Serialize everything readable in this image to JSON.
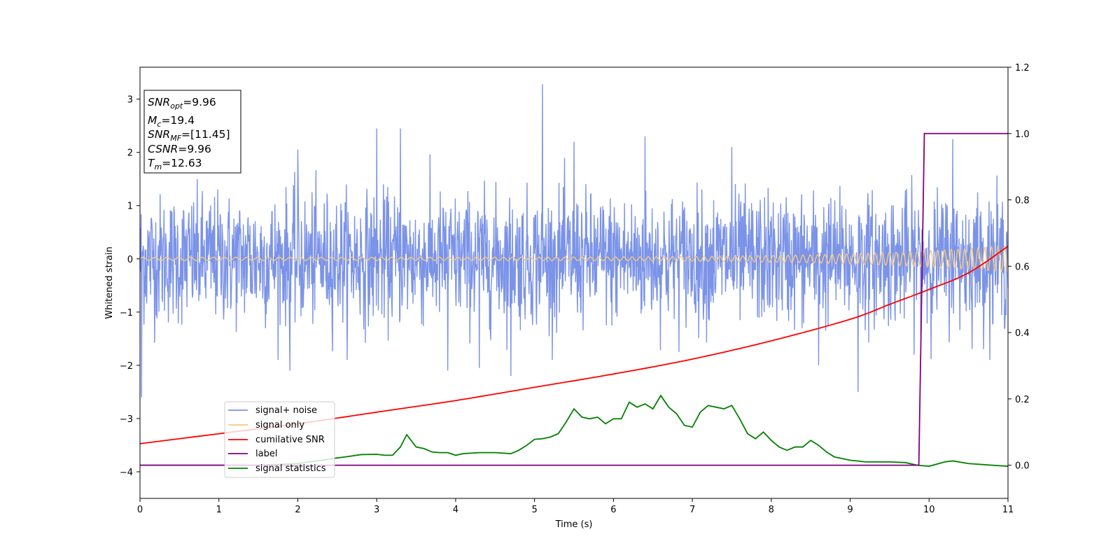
{
  "chart_data": {
    "type": "line",
    "xlabel": "Time (s)",
    "ylabel": "Whitened strain",
    "ylabel_right": "",
    "xlim": [
      0,
      11
    ],
    "ylim": [
      -4.5,
      3.6
    ],
    "ylim_right": [
      -0.1,
      1.2
    ],
    "x_ticks": [
      "0",
      "1",
      "2",
      "3",
      "4",
      "5",
      "6",
      "7",
      "8",
      "9",
      "10",
      "11"
    ],
    "y_ticks": [
      "−4",
      "−3",
      "−2",
      "−1",
      "0",
      "1",
      "2",
      "3"
    ],
    "y_ticks_right": [
      "0.0",
      "0.2",
      "0.4",
      "0.6",
      "0.8",
      "1.0",
      "1.2"
    ],
    "grid": false,
    "legend_placement": "lower-left",
    "annotation": {
      "line1_main": "SNR",
      "line1_sub": "opt",
      "line1_rest": "=9.96",
      "line2_main": "M",
      "line2_sub": "c",
      "line2_rest": "=19.4",
      "line3_main": "SNR",
      "line3_sub": "MF",
      "line3_rest": "=[11.45]",
      "line4_main": "CSNR",
      "line4_rest": "=9.96",
      "line5_main": "T",
      "line5_sub": "m",
      "line5_rest": "=12.63"
    },
    "series": [
      {
        "name": "signal+ noise",
        "axis": "left",
        "color": "#7b93e8",
        "kind": "noise",
        "spread": 0.6,
        "spikes": [
          [
            0.02,
            -2.6
          ],
          [
            1.9,
            -2.1
          ],
          [
            2.0,
            2.05
          ],
          [
            3.0,
            2.45
          ],
          [
            3.3,
            2.45
          ],
          [
            3.9,
            -2.1
          ],
          [
            4.3,
            -2.05
          ],
          [
            4.7,
            -2.2
          ],
          [
            5.1,
            3.28
          ],
          [
            5.5,
            2.2
          ],
          [
            6.4,
            2.3
          ],
          [
            7.5,
            2.1
          ],
          [
            8.6,
            -2.0
          ],
          [
            9.1,
            -2.5
          ],
          [
            10.3,
            2.25
          ]
        ]
      },
      {
        "name": "signal only",
        "axis": "left",
        "color": "#f5c97e",
        "kind": "chirp",
        "amp_start": 0.03,
        "amp_end": 0.25
      },
      {
        "name": "cumilative SNR",
        "axis": "right",
        "color": "#ff0000",
        "x": [
          0,
          1,
          2,
          3,
          4,
          5,
          6,
          7,
          8,
          9,
          9.5,
          10,
          10.5,
          11
        ],
        "y": [
          0.065,
          0.095,
          0.125,
          0.16,
          0.195,
          0.235,
          0.275,
          0.32,
          0.375,
          0.44,
          0.485,
          0.53,
          0.58,
          0.66
        ]
      },
      {
        "name": "label",
        "axis": "right",
        "color": "#800080",
        "x": [
          0,
          9.87,
          9.94,
          11
        ],
        "y": [
          0,
          0,
          1,
          1
        ]
      },
      {
        "name": "signal statistics",
        "axis": "right",
        "color": "#008000",
        "x": [
          0,
          0.5,
          1,
          1.5,
          2,
          2.3,
          2.5,
          2.6,
          2.8,
          3.0,
          3.1,
          3.2,
          3.3,
          3.38,
          3.5,
          3.6,
          3.7,
          3.8,
          3.9,
          4.0,
          4.1,
          4.3,
          4.5,
          4.7,
          4.8,
          4.9,
          5.0,
          5.1,
          5.2,
          5.3,
          5.4,
          5.5,
          5.6,
          5.7,
          5.8,
          5.9,
          6.0,
          6.1,
          6.2,
          6.3,
          6.4,
          6.5,
          6.6,
          6.7,
          6.8,
          6.9,
          7.0,
          7.1,
          7.2,
          7.3,
          7.4,
          7.5,
          7.6,
          7.7,
          7.8,
          7.9,
          8.0,
          8.1,
          8.2,
          8.3,
          8.4,
          8.5,
          8.6,
          8.7,
          8.8,
          9.0,
          9.2,
          9.5,
          9.7,
          9.85,
          10.0,
          10.2,
          10.3,
          10.5,
          10.8,
          11
        ],
        "y": [
          0.0,
          0.0,
          0.0,
          0.0,
          0.005,
          0.015,
          0.022,
          0.025,
          0.032,
          0.033,
          0.03,
          0.03,
          0.055,
          0.092,
          0.055,
          0.05,
          0.04,
          0.038,
          0.038,
          0.03,
          0.035,
          0.038,
          0.038,
          0.035,
          0.045,
          0.06,
          0.078,
          0.08,
          0.085,
          0.095,
          0.13,
          0.17,
          0.145,
          0.14,
          0.145,
          0.125,
          0.14,
          0.14,
          0.19,
          0.175,
          0.185,
          0.17,
          0.21,
          0.175,
          0.155,
          0.12,
          0.115,
          0.16,
          0.18,
          0.175,
          0.17,
          0.18,
          0.14,
          0.095,
          0.08,
          0.1,
          0.075,
          0.055,
          0.045,
          0.055,
          0.055,
          0.075,
          0.06,
          0.04,
          0.025,
          0.015,
          0.01,
          0.01,
          0.008,
          0.0,
          -0.003,
          0.01,
          0.013,
          0.005,
          0.0,
          -0.003
        ]
      }
    ]
  }
}
